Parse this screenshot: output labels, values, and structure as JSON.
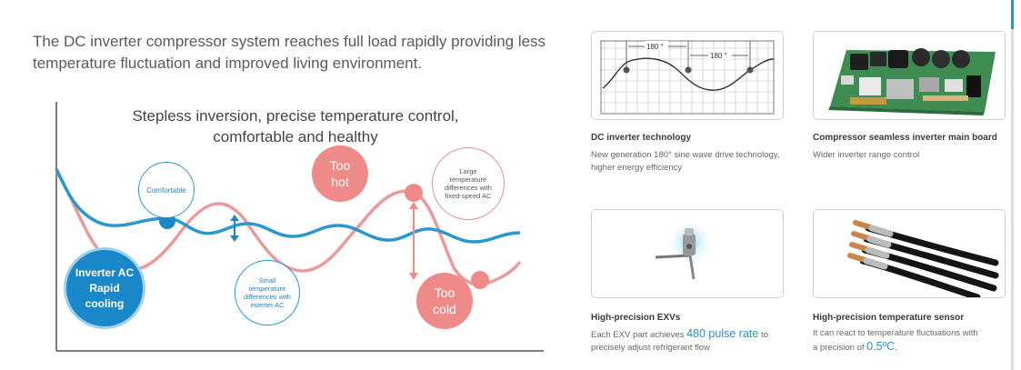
{
  "intro": {
    "line1": "The DC inverter compressor system reaches full load rapidly providing less",
    "line2": "temperature fluctuation and improved living environment."
  },
  "diagram": {
    "title_line1": "Stepless inversion, precise temperature control,",
    "title_line2": "comfortable and healthy",
    "comfortable": "Comfortable",
    "small_diff": [
      "Small",
      "temperature",
      "differences with",
      "inverter AC"
    ],
    "large_diff": [
      "Large",
      "temperature",
      "differences with",
      "fixed-speed AC"
    ],
    "too_hot": [
      "Too",
      "hot"
    ],
    "too_cold": [
      "Too",
      "cold"
    ],
    "inverter": [
      "Inverter AC",
      "Rapid",
      "cooling"
    ]
  },
  "colors": {
    "accent_blue": "#1a87c8",
    "accent_red": "#ee8b88",
    "curve_blue": "#2a97cf",
    "curve_red": "#e99a9a"
  },
  "features": [
    {
      "icon": "sine-wave-graph-image",
      "title": "DC inverter technology",
      "desc": [
        "New generation 180° sine wave drive technology,",
        "higher energy efficiency"
      ],
      "angle_label_1": "180 °",
      "angle_label_2": "180 °"
    },
    {
      "icon": "circuit-board-image",
      "title": "Compressor seamless inverter main board",
      "desc": [
        "Wider inverter range control"
      ]
    },
    {
      "icon": "expansion-valve-image",
      "title": "High-precision EXVs",
      "desc_pre": "Each EXV part achieves ",
      "desc_highlight": "480 pulse rate",
      "desc_post": " to",
      "desc_line2": "precisely adjust refrigerant flow"
    },
    {
      "icon": "temperature-sensor-image",
      "title": "High-precision temperature sensor",
      "desc_line1": "It can react to temperature fluctuations with",
      "desc_pre2": "a precision of ",
      "desc_highlight": "0.5ºC",
      "desc_post2": "."
    }
  ]
}
